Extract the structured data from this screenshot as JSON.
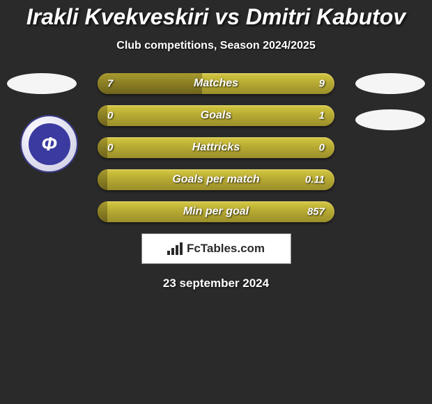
{
  "title": "Irakli Kvekveskiri vs Dmitri Kabutov",
  "subtitle": "Club competitions, Season 2024/2025",
  "date": "23 september 2024",
  "footer_brand": "FcTables.com",
  "colors": {
    "background": "#2a2a2a",
    "bar_base_top": "#d4c741",
    "bar_base_bottom": "#9a8e2a",
    "bar_fill_top": "#a89a2e",
    "bar_fill_bottom": "#6e641c",
    "text": "#ffffff",
    "badge_ring": "#3a3a8a",
    "badge_center": "#3a3aa0"
  },
  "bars": [
    {
      "label": "Matches",
      "left_val": "7",
      "right_val": "9",
      "fill_pct": 44
    },
    {
      "label": "Goals",
      "left_val": "0",
      "right_val": "1",
      "fill_pct": 4
    },
    {
      "label": "Hattricks",
      "left_val": "0",
      "right_val": "0",
      "fill_pct": 4
    },
    {
      "label": "Goals per match",
      "left_val": "",
      "right_val": "0.11",
      "fill_pct": 4
    },
    {
      "label": "Min per goal",
      "left_val": "",
      "right_val": "857",
      "fill_pct": 4
    }
  ],
  "badge_letter": "Ф"
}
